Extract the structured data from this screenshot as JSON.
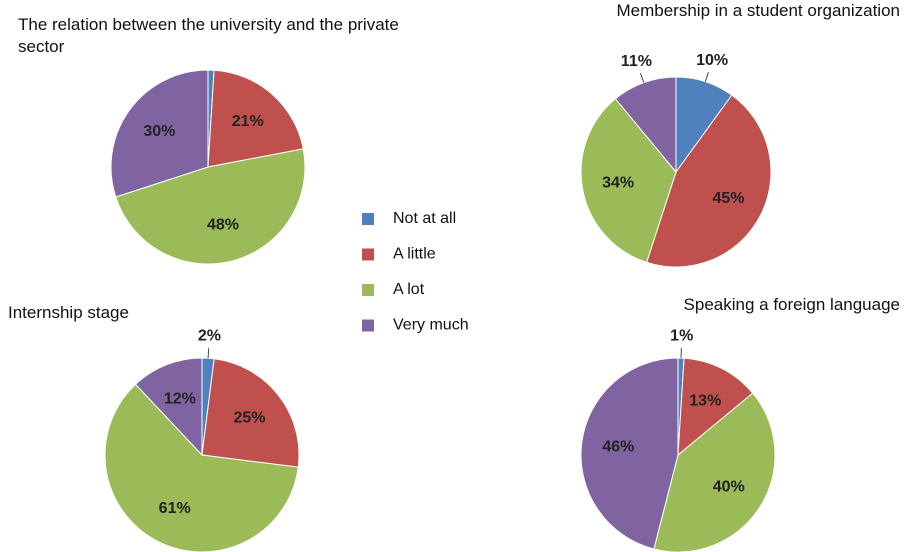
{
  "chart_data": [
    {
      "type": "pie",
      "title": "The relation between the university and the private sector",
      "categories": [
        "Not at all",
        "A little",
        "A lot",
        "Very much"
      ],
      "values": [
        1,
        21,
        48,
        30
      ],
      "value_labels": [
        null,
        "21%",
        "48%",
        "30%"
      ],
      "colors": [
        "#4f81bd",
        "#c0504d",
        "#9bbb59",
        "#8064a2"
      ]
    },
    {
      "type": "pie",
      "title": "Membership in a student organization",
      "categories": [
        "Not at all",
        "A little",
        "A lot",
        "Very much"
      ],
      "values": [
        10,
        45,
        34,
        11
      ],
      "value_labels": [
        "10%",
        "45%",
        "34%",
        "11%"
      ],
      "colors": [
        "#4f81bd",
        "#c0504d",
        "#9bbb59",
        "#8064a2"
      ]
    },
    {
      "type": "pie",
      "title": "Internship stage",
      "categories": [
        "Not at all",
        "A little",
        "A lot",
        "Very much"
      ],
      "values": [
        2,
        25,
        61,
        12
      ],
      "value_labels": [
        "2%",
        "25%",
        "61%",
        "12%"
      ],
      "colors": [
        "#4f81bd",
        "#c0504d",
        "#9bbb59",
        "#8064a2"
      ]
    },
    {
      "type": "pie",
      "title": "Speaking a foreign language",
      "categories": [
        "Not at all",
        "A little",
        "A lot",
        "Very much"
      ],
      "values": [
        1,
        13,
        40,
        46
      ],
      "value_labels": [
        "1%",
        "13%",
        "40%",
        "46%"
      ],
      "colors": [
        "#4f81bd",
        "#c0504d",
        "#9bbb59",
        "#8064a2"
      ]
    }
  ]
}
